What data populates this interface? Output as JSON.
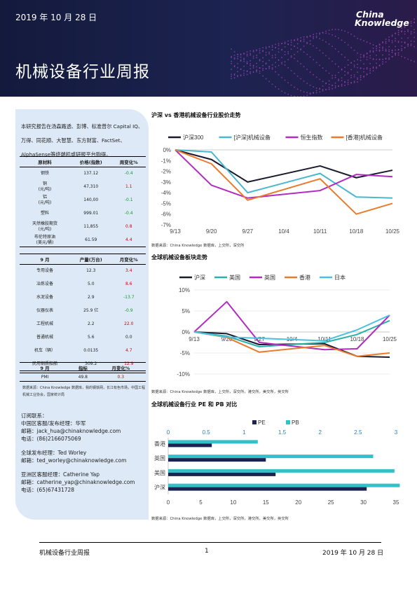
{
  "header": {
    "date": "2019 年 10 月 28 日",
    "title": "机械设备行业周报",
    "logo_line1": "China",
    "logo_line2": "Knowledge"
  },
  "colors": {
    "banner": "#1c2350",
    "sidebar": "#dde9f7",
    "red": "#d00000",
    "green": "#0a9a2a"
  },
  "sidebar": {
    "intro": "本研究报告在汤森路透、彭博、标准普尔 Capital IQ、万得、同花顺、大智慧、东方财富、FactSet、AlphaSense等终端机或研报平台购得。",
    "materials": {
      "headers": [
        "原材料",
        "价格(指数)",
        "周变化%"
      ],
      "rows": [
        {
          "name": "钢铁",
          "value": "137.12",
          "change": "-0.4",
          "dir": "down"
        },
        {
          "name": "铜\n(元/吨)",
          "value": "47,310",
          "change": "1.1",
          "dir": "up"
        },
        {
          "name": "铝\n(元/吨)",
          "value": "140,00",
          "change": "-0.1",
          "dir": "down"
        },
        {
          "name": "塑料",
          "value": "999.01",
          "change": "-0.4",
          "dir": "down"
        },
        {
          "name": "天然橡胶期货\n(元/吨)",
          "value": "11,855",
          "change": "0.8",
          "dir": "up"
        },
        {
          "name": "布伦特原油\n(美元/桶)",
          "value": "61.59",
          "change": "4.4",
          "dir": "up"
        }
      ]
    },
    "production": {
      "headers": [
        "9 月",
        "产量(万台)",
        "月变化%"
      ],
      "rows": [
        {
          "name": "专用设备",
          "value": "12.3",
          "change": "3.4",
          "dir": "up"
        },
        {
          "name": "冶炼设备",
          "value": "5.0",
          "change": "8.6",
          "dir": "up"
        },
        {
          "name": "水泥设备",
          "value": "2.9",
          "change": "-13.7",
          "dir": "down"
        },
        {
          "name": "仪器仪表",
          "value": "25.9 亿",
          "change": "-0.9",
          "dir": "down"
        },
        {
          "name": "工程机械",
          "value": "2.2",
          "change": "22.0",
          "dir": "up"
        },
        {
          "name": "普通机械",
          "value": "5.6",
          "change": "0.0",
          "dir": "flat"
        },
        {
          "name": "机车（辆）",
          "value": "0.0135",
          "change": "4.7",
          "dir": "up"
        },
        {
          "name": "民用钢质船舶",
          "value": "309.2",
          "change": "12.9",
          "dir": "up"
        }
      ]
    },
    "pmi": {
      "headers": [
        "9 月",
        "指标",
        "月变化%"
      ],
      "rows": [
        {
          "name": "PMI",
          "value": "49.8",
          "change": "0.3",
          "dir": "up"
        }
      ]
    },
    "note": "数据来源：China Knowledge 数据库，我的钢铁网，长江有色市场，中国工程机械工业协会，国家统计局",
    "contacts": [
      {
        "lines": [
          "订阅联系：",
          "中国区客服/发布经理：华军",
          "邮箱：jack_hua@chinaknowledge.com",
          "电话：(86)2166075069"
        ]
      },
      {
        "lines": [
          "全球发布经理：Ted Worley",
          "邮箱：ted_worley@chinaknowledge.com"
        ]
      },
      {
        "lines": [
          "亚洲区客服经理：Catherine Yap",
          "邮箱：catherine_yap@chinaknowledge.com",
          "电话：(65)67431728"
        ]
      }
    ]
  },
  "charts": {
    "c1_title": "沪深 vs 香港机械设备行业股价走势",
    "c1_source": "数据来源：China Knowledge 数据库，上交所，深交所",
    "c2_title": "全球机械设备板块走势",
    "c2_source": "数据来源：China Knowledge 数据库，上交所，深交所，港交所，美交所，英交所",
    "c3_title": "全球机械设备行业 PE 和 PB 对比",
    "c3_source": "数据来源：China Knowledge 数据库，上交所，深交所，港交所，美交所，英交所"
  },
  "chart_data": [
    {
      "type": "line",
      "title": "沪深 vs 香港机械设备行业股价走势",
      "x": [
        "9/13",
        "9/20",
        "9/27",
        "10/4",
        "10/11",
        "10/18",
        "10/25"
      ],
      "x_ticks": [
        "9/13",
        "9/20",
        "9/27",
        "10/4",
        "10/11",
        "10/18",
        "10/25"
      ],
      "y_ticks": [
        "0%",
        "-1%",
        "-2%",
        "-3%",
        "-4%",
        "-5%",
        "-6%",
        "-7%"
      ],
      "ylim": [
        -7,
        0
      ],
      "legend": "top",
      "series": [
        {
          "name": "沪深300",
          "color": "#1a1a2e",
          "x": [
            0,
            1,
            2,
            4,
            5,
            6
          ],
          "values": [
            0,
            -0.9,
            -3.0,
            -1.5,
            -2.6,
            -1.9
          ]
        },
        {
          "name": "[沪深]机械设备",
          "color": "#4ab8cc",
          "x": [
            0,
            1,
            2,
            4,
            5,
            6
          ],
          "values": [
            0,
            -0.2,
            -4.0,
            -2.2,
            -4.4,
            -4.5
          ]
        },
        {
          "name": "恒生指数",
          "color": "#b22cc2",
          "x": [
            0,
            1,
            2,
            4,
            5,
            6
          ],
          "values": [
            0,
            -3.3,
            -4.5,
            -3.8,
            -2.3,
            -2.5
          ]
        },
        {
          "name": "[香港]机械设备",
          "color": "#ea7b2c",
          "x": [
            0,
            1,
            2,
            4,
            5,
            6
          ],
          "values": [
            0,
            -1.3,
            -4.7,
            -2.7,
            -6.0,
            -5.0
          ]
        }
      ]
    },
    {
      "type": "line",
      "title": "全球机械设备板块走势",
      "x": [
        "9/13",
        "9/20",
        "9/27",
        "10/4",
        "10/11",
        "10/18",
        "10/25"
      ],
      "x_ticks": [
        "9/13",
        "9/20",
        "9/27",
        "10/4",
        "10/11",
        "10/18",
        "10/25"
      ],
      "y_ticks": [
        "10%",
        "5%",
        "0%",
        "-5%",
        "-10%"
      ],
      "ylim": [
        -10,
        10
      ],
      "legend": "top",
      "series": [
        {
          "name": "沪深",
          "color": "#1a1a2e",
          "x": [
            0,
            1,
            2,
            4,
            5,
            6
          ],
          "values": [
            0,
            -0.4,
            -3.0,
            -2.8,
            -5.8,
            -6.0
          ]
        },
        {
          "name": "美国",
          "color": "#2ab0a8",
          "x": [
            0,
            1,
            2,
            4,
            5,
            6
          ],
          "values": [
            0,
            -1.0,
            -3.5,
            -2.5,
            -0.6,
            2.7
          ]
        },
        {
          "name": "英国",
          "color": "#b22cc2",
          "x": [
            0,
            1,
            2,
            4,
            5,
            6
          ],
          "values": [
            0,
            7.2,
            -2.5,
            -4.2,
            -4.0,
            4.0
          ]
        },
        {
          "name": "香港",
          "color": "#ea7b2c",
          "x": [
            0,
            1,
            2,
            4,
            5,
            6
          ],
          "values": [
            0,
            -1.3,
            -4.8,
            -3.2,
            -5.8,
            -5.0
          ]
        },
        {
          "name": "日本",
          "color": "#4ac0e0",
          "x": [
            0,
            1,
            2,
            4,
            5,
            6
          ],
          "values": [
            0,
            -1.2,
            -1.5,
            -2.1,
            0.5,
            4.0
          ]
        }
      ]
    },
    {
      "type": "bar",
      "title": "全球机械设备行业 PE 和 PB 对比",
      "categories": [
        "香港",
        "英国",
        "美国",
        "沪深"
      ],
      "series": [
        {
          "name": "PE",
          "color": "#1c2350",
          "axis": "bottom",
          "values": [
            6.7,
            15.0,
            16.5,
            30.5
          ]
        },
        {
          "name": "PB",
          "color": "#33c0c8",
          "axis": "top",
          "values": [
            1.18,
            2.7,
            2.98,
            3.05
          ]
        }
      ],
      "x_ticks_bottom": [
        "0",
        "5",
        "10",
        "15",
        "20",
        "25",
        "30",
        "35"
      ],
      "x_ticks_top": [
        "0",
        "0.5",
        "1",
        "1.5",
        "2",
        "2.5",
        "3"
      ],
      "xlim_bottom": [
        0,
        35
      ],
      "xlim_top": [
        0,
        3
      ],
      "legend": "top"
    }
  ],
  "footer": {
    "left": "机械设备行业周报",
    "page": "1",
    "right": "2019 年 10 月 28 日"
  }
}
